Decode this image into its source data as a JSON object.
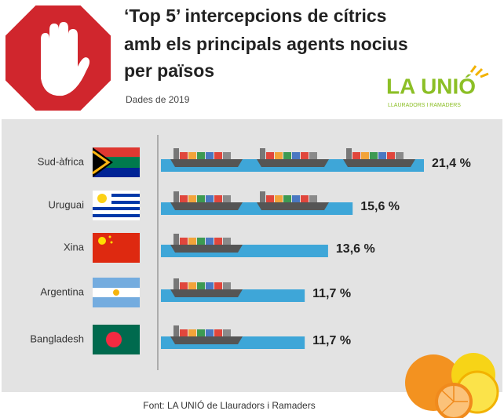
{
  "chart_data": {
    "type": "bar",
    "orientation": "horizontal",
    "title_lines": [
      "‘Top 5’ intercepcions de cítrics",
      "amb els principals agents nocius",
      "per països"
    ],
    "subtitle": "Dades de 2019",
    "logo": "LA UNIÓ",
    "logo_subtitle": "LLAURADORS I RAMADERS",
    "source": "Font: LA UNIÓ de Llauradors i Ramaders",
    "categories": [
      "Sud-àfrica",
      "Uruguai",
      "Xina",
      "Argentina",
      "Bangladesh"
    ],
    "values": [
      21.4,
      15.6,
      13.6,
      11.7,
      11.7
    ],
    "value_labels": [
      "21,4 %",
      "15,6 %",
      "13,6 %",
      "11,7 %",
      "11,7 %"
    ],
    "color": "#3ea6d8"
  }
}
